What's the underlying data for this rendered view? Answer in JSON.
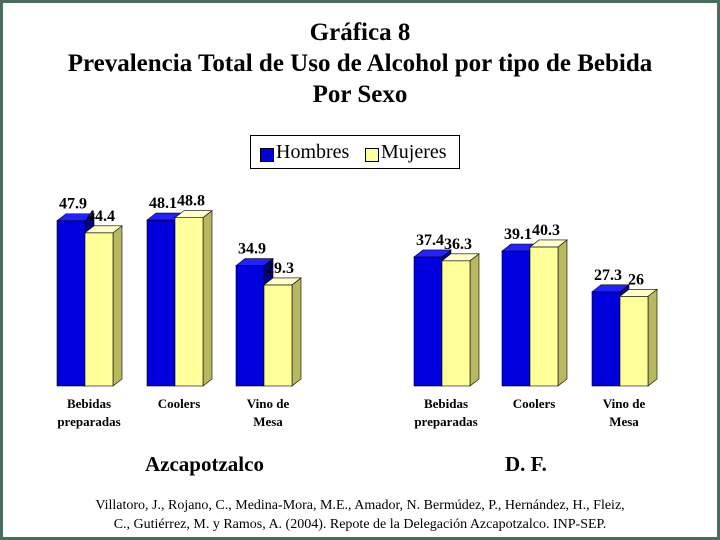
{
  "chart_data": [
    {
      "type": "bar",
      "title": "Gráfica 8",
      "subtitle": "Prevalencia Total de Uso de Alcohol por tipo de Bebida",
      "subtitle2": "Por Sexo",
      "region": "Azcapotzalco",
      "categories": [
        "Bebidas preparadas",
        "Coolers",
        "Vino de Mesa"
      ],
      "series": [
        {
          "name": "Hombres",
          "values": [
            47.9,
            48.1,
            34.9
          ],
          "color": "#0000dd"
        },
        {
          "name": "Mujeres",
          "values": [
            44.4,
            48.8,
            29.3
          ],
          "color": "#ffff99"
        }
      ],
      "value_labels": [
        [
          "47.9",
          "48.1",
          "34.9"
        ],
        [
          "44.4",
          "48.8",
          "29.3"
        ]
      ],
      "ylim": [
        0,
        50
      ]
    },
    {
      "type": "bar",
      "region": "D. F.",
      "categories": [
        "Bebidas preparadas",
        "Coolers",
        "Vino de Mesa"
      ],
      "series": [
        {
          "name": "Hombres",
          "values": [
            37.4,
            39.1,
            27.3
          ],
          "color": "#0000dd"
        },
        {
          "name": "Mujeres",
          "values": [
            36.3,
            40.3,
            26
          ],
          "color": "#ffff99"
        }
      ],
      "value_labels": [
        [
          "37.4",
          "39.1",
          "27.3"
        ],
        [
          "36.3",
          "40.3",
          "26"
        ]
      ],
      "ylim": [
        0,
        50
      ]
    }
  ],
  "legend": {
    "items": [
      "Hombres",
      "Mujeres"
    ],
    "position": "top-center"
  },
  "category_lines": [
    [
      "Bebidas",
      "preparadas"
    ],
    [
      "Coolers"
    ],
    [
      "Vino de",
      "Mesa"
    ]
  ],
  "footer": {
    "line1": "Villatoro, J., Rojano, C., Medina-Mora, M.E., Amador, N. Bermúdez, P., Hernández, H., Fleiz,",
    "line2": "C., Gutiérrez, M. y Ramos, A. (2004). Repote de la Delegación Azcapotzalco. INP-SEP."
  }
}
